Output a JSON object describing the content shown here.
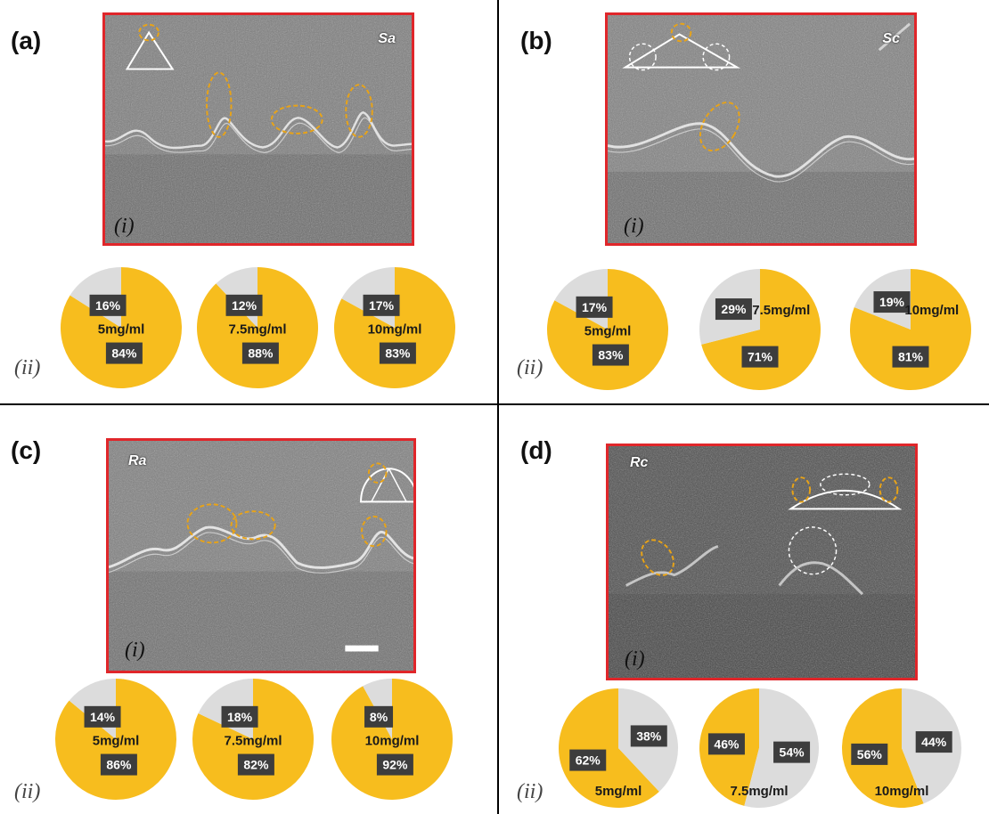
{
  "colors": {
    "yellow": "#f7bd1e",
    "grey": "#dcdcdc",
    "frame": "#e0262a",
    "annotation_orange": "#e8a317",
    "annotation_white": "#ffffff"
  },
  "panels": [
    {
      "letter": "(a)",
      "sample": "Sa",
      "sub_i": "(i)",
      "sub_ii": "(ii)",
      "annotation_shape": "triangle"
    },
    {
      "letter": "(b)",
      "sample": "Sc",
      "sub_i": "(i)",
      "sub_ii": "(ii)",
      "annotation_shape": "wide-triangle"
    },
    {
      "letter": "(c)",
      "sample": "Ra",
      "sub_i": "(i)",
      "sub_ii": "(ii)",
      "annotation_shape": "semicircle"
    },
    {
      "letter": "(d)",
      "sample": "Rc",
      "sub_i": "(i)",
      "sub_ii": "(ii)",
      "annotation_shape": "flat-arc"
    }
  ],
  "chart_data": [
    {
      "type": "pie",
      "panel": "(a)",
      "pies": [
        {
          "label": "5mg/ml",
          "values": [
            84,
            16
          ],
          "labels": [
            "84%",
            "16%"
          ]
        },
        {
          "label": "7.5mg/ml",
          "values": [
            88,
            12
          ],
          "labels": [
            "88%",
            "12%"
          ]
        },
        {
          "label": "10mg/ml",
          "values": [
            83,
            17
          ],
          "labels": [
            "83%",
            "17%"
          ]
        }
      ]
    },
    {
      "type": "pie",
      "panel": "(b)",
      "pies": [
        {
          "label": "5mg/ml",
          "values": [
            83,
            17
          ],
          "labels": [
            "83%",
            "17%"
          ]
        },
        {
          "label": "7.5mg/ml",
          "values": [
            71,
            29
          ],
          "labels": [
            "71%",
            "29%"
          ]
        },
        {
          "label": "10mg/ml",
          "values": [
            81,
            19
          ],
          "labels": [
            "81%",
            "19%"
          ]
        }
      ]
    },
    {
      "type": "pie",
      "panel": "(c)",
      "pies": [
        {
          "label": "5mg/ml",
          "values": [
            86,
            14
          ],
          "labels": [
            "86%",
            "14%"
          ]
        },
        {
          "label": "7.5mg/ml",
          "values": [
            82,
            18
          ],
          "labels": [
            "82%",
            "18%"
          ]
        },
        {
          "label": "10mg/ml",
          "values": [
            92,
            8
          ],
          "labels": [
            "92%",
            "8%"
          ]
        }
      ]
    },
    {
      "type": "pie",
      "panel": "(d)",
      "pies": [
        {
          "label": "5mg/ml",
          "values": [
            62,
            38
          ],
          "labels": [
            "62%",
            "38%"
          ]
        },
        {
          "label": "7.5mg/ml",
          "values": [
            46,
            54
          ],
          "labels": [
            "46%",
            "54%"
          ]
        },
        {
          "label": "10mg/ml",
          "values": [
            56,
            44
          ],
          "labels": [
            "56%",
            "44%"
          ]
        }
      ]
    }
  ]
}
